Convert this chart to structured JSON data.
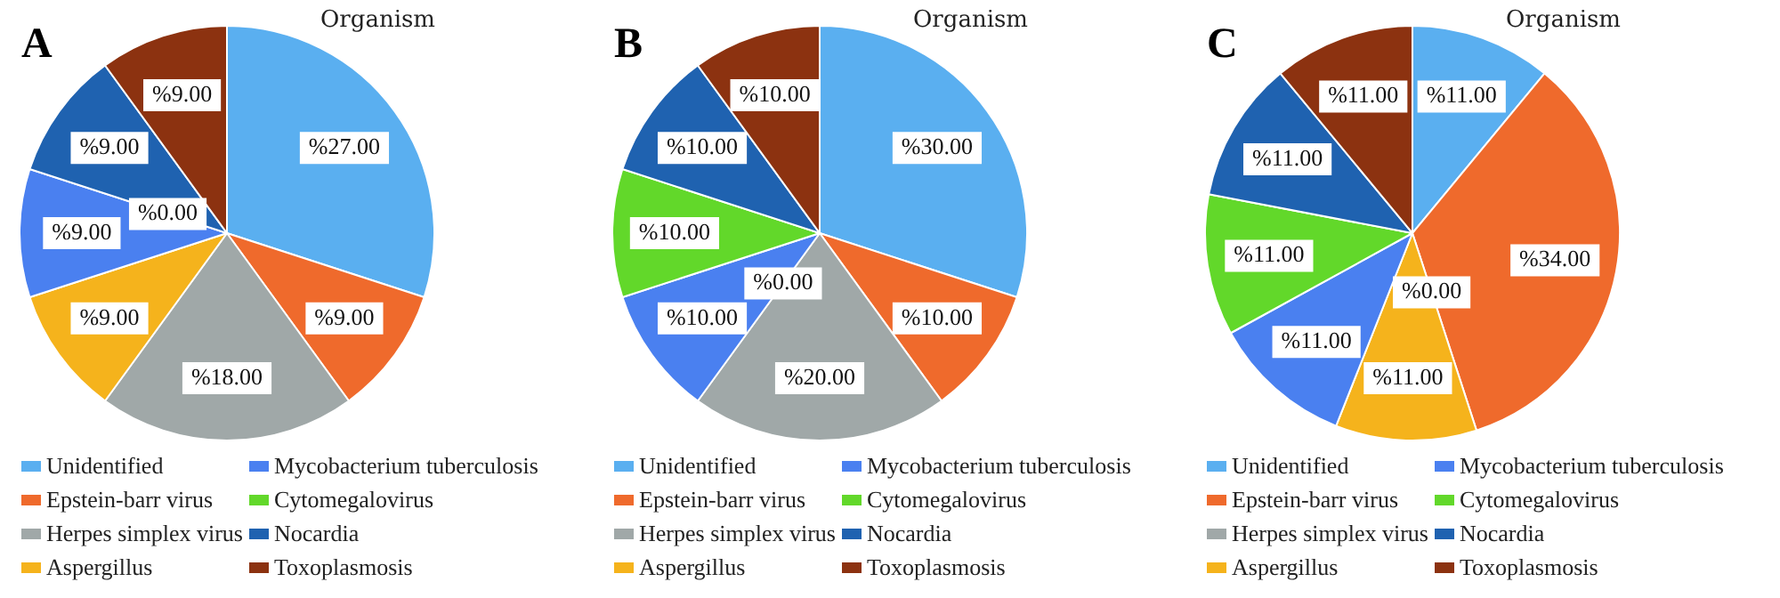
{
  "chart_data": [
    {
      "type": "pie",
      "title": "Organism",
      "annotations": [
        "A"
      ],
      "legend": "bottom",
      "categories": [
        "Unidentified",
        "Epstein-barr virus",
        "Herpes simplex virus",
        "Aspergillus",
        "Mycobacterium tuberculosis",
        "Cytomegalovirus",
        "Nocardia",
        "Toxoplasmosis"
      ],
      "values": [
        27,
        9,
        18,
        9,
        9,
        0,
        9,
        9
      ],
      "value_labels": [
        "%27.00",
        "%9.00",
        "%18.00",
        "%9.00",
        "%9.00",
        "%0.00",
        "%9.00",
        "%9.00"
      ],
      "colors": [
        "#5aaff0",
        "#ef6a2c",
        "#a0a8a8",
        "#f5b31c",
        "#4a80f0",
        "#62d82a",
        "#1f62b0",
        "#8c3210"
      ]
    },
    {
      "type": "pie",
      "title": "Organism",
      "annotations": [
        "B"
      ],
      "legend": "bottom",
      "categories": [
        "Unidentified",
        "Epstein-barr virus",
        "Herpes simplex virus",
        "Aspergillus",
        "Mycobacterium tuberculosis",
        "Cytomegalovirus",
        "Nocardia",
        "Toxoplasmosis"
      ],
      "values": [
        30,
        10,
        20,
        0,
        10,
        10,
        10,
        10
      ],
      "value_labels": [
        "%30.00",
        "%10.00",
        "%20.00",
        "%0.00",
        "%10.00",
        "%10.00",
        "%10.00",
        "%10.00"
      ],
      "colors": [
        "#5aaff0",
        "#ef6a2c",
        "#a0a8a8",
        "#f5b31c",
        "#4a80f0",
        "#62d82a",
        "#1f62b0",
        "#8c3210"
      ]
    },
    {
      "type": "pie",
      "title": "Organism",
      "annotations": [
        "C"
      ],
      "legend": "bottom",
      "categories": [
        "Unidentified",
        "Epstein-barr virus",
        "Herpes simplex virus",
        "Aspergillus",
        "Mycobacterium tuberculosis",
        "Cytomegalovirus",
        "Nocardia",
        "Toxoplasmosis"
      ],
      "values": [
        11,
        34,
        0,
        11,
        11,
        11,
        11,
        11
      ],
      "value_labels": [
        "%11.00",
        "%34.00",
        "%0.00",
        "%11.00",
        "%11.00",
        "%11.00",
        "%11.00",
        "%11.00"
      ],
      "colors": [
        "#5aaff0",
        "#ef6a2c",
        "#a0a8a8",
        "#f5b31c",
        "#4a80f0",
        "#62d82a",
        "#1f62b0",
        "#8c3210"
      ]
    }
  ]
}
